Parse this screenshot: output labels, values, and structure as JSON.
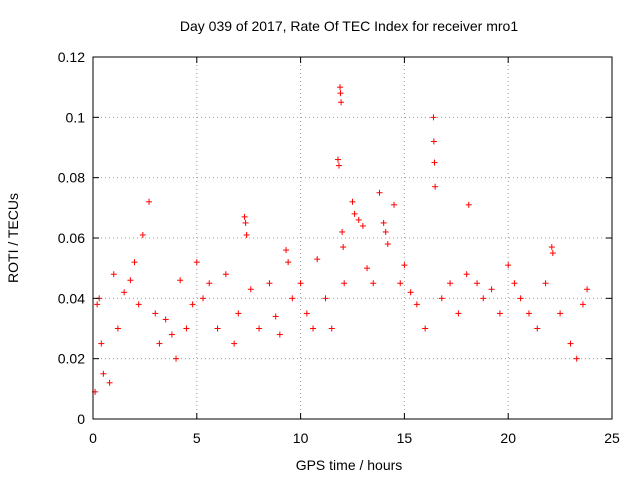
{
  "chart_data": {
    "type": "scatter",
    "title": "Day 039 of 2017, Rate Of TEC Index for receiver mro1",
    "xlabel": "GPS time / hours",
    "ylabel": "ROTI / TECUs",
    "xlim": [
      0,
      25
    ],
    "ylim": [
      0,
      0.12
    ],
    "xticks": [
      0,
      5,
      10,
      15,
      20,
      25
    ],
    "yticks": [
      0,
      0.02,
      0.04,
      0.06,
      0.08,
      0.1,
      0.12
    ],
    "xtick_labels": [
      "0",
      "5",
      "10",
      "15",
      "20",
      "25"
    ],
    "ytick_labels": [
      "0",
      "0.02",
      "0.04",
      "0.06",
      "0.08",
      "0.1",
      "0.12"
    ],
    "grid": true,
    "marker": "+",
    "color": "#ff0000",
    "series": [
      {
        "points": [
          [
            0.1,
            0.009
          ],
          [
            0.2,
            0.038
          ],
          [
            0.3,
            0.04
          ],
          [
            0.4,
            0.025
          ],
          [
            0.5,
            0.015
          ],
          [
            0.8,
            0.012
          ],
          [
            1.0,
            0.048
          ],
          [
            1.2,
            0.03
          ],
          [
            1.5,
            0.042
          ],
          [
            1.8,
            0.046
          ],
          [
            2.0,
            0.052
          ],
          [
            2.2,
            0.038
          ],
          [
            2.4,
            0.061
          ],
          [
            2.7,
            0.072
          ],
          [
            3.0,
            0.035
          ],
          [
            3.2,
            0.025
          ],
          [
            3.5,
            0.033
          ],
          [
            3.8,
            0.028
          ],
          [
            4.0,
            0.02
          ],
          [
            4.2,
            0.046
          ],
          [
            4.5,
            0.03
          ],
          [
            4.8,
            0.038
          ],
          [
            5.0,
            0.052
          ],
          [
            5.3,
            0.04
          ],
          [
            5.6,
            0.045
          ],
          [
            6.0,
            0.03
          ],
          [
            6.4,
            0.048
          ],
          [
            6.8,
            0.025
          ],
          [
            7.0,
            0.035
          ],
          [
            7.3,
            0.067
          ],
          [
            7.35,
            0.065
          ],
          [
            7.4,
            0.061
          ],
          [
            7.6,
            0.043
          ],
          [
            8.0,
            0.03
          ],
          [
            8.5,
            0.045
          ],
          [
            8.8,
            0.034
          ],
          [
            9.0,
            0.028
          ],
          [
            9.3,
            0.056
          ],
          [
            9.4,
            0.052
          ],
          [
            9.6,
            0.04
          ],
          [
            10.0,
            0.045
          ],
          [
            10.3,
            0.035
          ],
          [
            10.6,
            0.03
          ],
          [
            10.8,
            0.053
          ],
          [
            11.2,
            0.04
          ],
          [
            11.5,
            0.03
          ],
          [
            11.8,
            0.086
          ],
          [
            11.85,
            0.084
          ],
          [
            11.9,
            0.11
          ],
          [
            11.92,
            0.108
          ],
          [
            11.95,
            0.105
          ],
          [
            12.0,
            0.062
          ],
          [
            12.05,
            0.057
          ],
          [
            12.1,
            0.045
          ],
          [
            12.5,
            0.072
          ],
          [
            12.6,
            0.068
          ],
          [
            12.8,
            0.066
          ],
          [
            13.0,
            0.064
          ],
          [
            13.2,
            0.05
          ],
          [
            13.5,
            0.045
          ],
          [
            13.8,
            0.075
          ],
          [
            14.0,
            0.065
          ],
          [
            14.1,
            0.062
          ],
          [
            14.2,
            0.058
          ],
          [
            14.5,
            0.071
          ],
          [
            14.8,
            0.045
          ],
          [
            15.0,
            0.051
          ],
          [
            15.3,
            0.042
          ],
          [
            15.6,
            0.038
          ],
          [
            16.0,
            0.03
          ],
          [
            16.4,
            0.1
          ],
          [
            16.42,
            0.092
          ],
          [
            16.45,
            0.085
          ],
          [
            16.48,
            0.077
          ],
          [
            16.8,
            0.04
          ],
          [
            17.2,
            0.045
          ],
          [
            17.6,
            0.035
          ],
          [
            18.0,
            0.048
          ],
          [
            18.1,
            0.071
          ],
          [
            18.5,
            0.045
          ],
          [
            18.8,
            0.04
          ],
          [
            19.2,
            0.043
          ],
          [
            19.6,
            0.035
          ],
          [
            20.0,
            0.051
          ],
          [
            20.3,
            0.045
          ],
          [
            20.6,
            0.04
          ],
          [
            21.0,
            0.035
          ],
          [
            21.4,
            0.03
          ],
          [
            21.8,
            0.045
          ],
          [
            22.1,
            0.057
          ],
          [
            22.15,
            0.055
          ],
          [
            22.5,
            0.035
          ],
          [
            23.0,
            0.025
          ],
          [
            23.3,
            0.02
          ],
          [
            23.6,
            0.038
          ],
          [
            23.8,
            0.043
          ]
        ]
      }
    ]
  }
}
